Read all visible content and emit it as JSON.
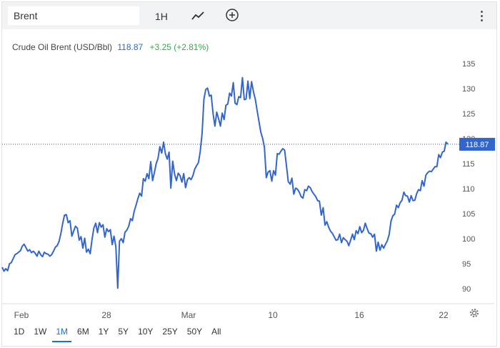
{
  "toolbar": {
    "symbol_value": "Brent",
    "interval_label": "1H",
    "chart_type_icon": "line-chart-icon",
    "add_icon": "plus-circle-icon",
    "menu_icon": "more-vert-icon"
  },
  "quote": {
    "name": "Crude Oil Brent (USD/Bbl)",
    "price": "118.87",
    "change": "+3.25 (+2.81%)",
    "change_color": "#3ba64a",
    "price_color": "#3366cc"
  },
  "chart_data": {
    "type": "line",
    "title": "Crude Oil Brent (USD/Bbl)",
    "x_tick_labels": [
      "Feb",
      "28",
      "Mar",
      "10",
      "16",
      "22"
    ],
    "y_ticks": [
      90,
      95,
      100,
      105,
      110,
      115,
      120,
      125,
      130,
      135
    ],
    "ylim": [
      87,
      137
    ],
    "last_price_label": "118.87",
    "last_price": 118.87,
    "series": [
      {
        "values": [
          94.3,
          93.5,
          94,
          93.6,
          95,
          95.2,
          96,
          96.8,
          97,
          97.3,
          97.6,
          98.5,
          98.9,
          98.2,
          97.5,
          97.8,
          97.2,
          97.5,
          97.1,
          96.5,
          97.5,
          96.8,
          96.4,
          97.3,
          97,
          96.9,
          96.5,
          96.8,
          97.5,
          98.3,
          98.6,
          99.4,
          101,
          103,
          104.7,
          104.8,
          103.2,
          103.6,
          100.5,
          101.5,
          102.5,
          102.1,
          99.7,
          100.4,
          98.1,
          100.1,
          97.3,
          97.9,
          97,
          99.8,
          102.1,
          103.1,
          101.2,
          103.2,
          102.3,
          102.8,
          100.3,
          102,
          101.4,
          101.8,
          98.8,
          100.5,
          98.4,
          90.1,
          99.5,
          100,
          99.2,
          101.3,
          101.7,
          102.5,
          104,
          103.6,
          105.5,
          106.7,
          108,
          109.1,
          108.5,
          112,
          111.5,
          113,
          112,
          115.4,
          111.6,
          113.2,
          115,
          116.1,
          118.4,
          117.1,
          119.3,
          117,
          115.9,
          117.3,
          110.1,
          115.5,
          112.9,
          111.6,
          113.1,
          112.6,
          111.3,
          113,
          110.2,
          111.8,
          112.2,
          111.8,
          112.6,
          113.9,
          114.6,
          115.2,
          117.4,
          121,
          127.9,
          129.8,
          130.1,
          128.5,
          128.7,
          125,
          122.5,
          125.3,
          124,
          122.5,
          125.1,
          123.8,
          126.7,
          126.9,
          129.1,
          128.5,
          131.2,
          127.1,
          126.8,
          128.4,
          128.2,
          132.2,
          127.8,
          127.9,
          131.5,
          128,
          131.4,
          129.4,
          127.9,
          125.7,
          123.5,
          121.3,
          120.1,
          118.3,
          112.2,
          113.3,
          113.6,
          111.5,
          113.6,
          112.7,
          117,
          116.9,
          117.5,
          118,
          117.7,
          114.6,
          111.4,
          110.9,
          112.1,
          108.9,
          110.1,
          109.9,
          109.3,
          108.4,
          108.1,
          109.8,
          109.6,
          110.5,
          110.2,
          109.4,
          108.9,
          108.4,
          107.6,
          107.5,
          104.7,
          106.2,
          102.7,
          103.4,
          102.3,
          101.5,
          101.1,
          100.4,
          99.7,
          99.8,
          100.9,
          99.2,
          100.2,
          99.8,
          99.5,
          98.6,
          99.7,
          100.9,
          99.8,
          101.6,
          101,
          102.4,
          101.2,
          101.7,
          103.1,
          102,
          101.1,
          101,
          100.3,
          100.9,
          97.5,
          99.3,
          97.7,
          98.8,
          98.1,
          98.9,
          99.6,
          100.8,
          103.5,
          104.6,
          104.9,
          106.7,
          106.2,
          107.2,
          107.7,
          109.3,
          108.6,
          108.5,
          107.3,
          108.6,
          107.6,
          107.7,
          109,
          109.8,
          109.6,
          111.6,
          110.5,
          112.7,
          113.2,
          113.5,
          113.4,
          113.9,
          114.4,
          114.4,
          116.8,
          116.2,
          117.3,
          117.5,
          119.3,
          118.9
        ]
      }
    ]
  },
  "range_buttons": [
    "1D",
    "1W",
    "1M",
    "6M",
    "1Y",
    "5Y",
    "10Y",
    "25Y",
    "50Y",
    "All"
  ],
  "active_range": "1M",
  "colors": {
    "line": "#3366cc",
    "price_tag": "#3366cc",
    "grid": "#e6e6e6",
    "accent": "#1f6fcf"
  }
}
